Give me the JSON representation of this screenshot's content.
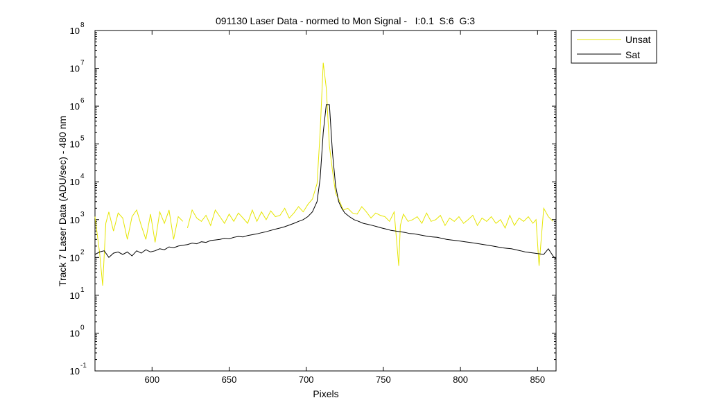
{
  "chart_data": {
    "type": "line",
    "title": "091130 Laser Data - normed to Mon Signal -   I:0.1  S:6  G:3",
    "xlabel": "Pixels",
    "ylabel": "Track 7 Laser Data (ADU/sec) - 480 nm",
    "xlim": [
      563,
      862
    ],
    "ylim": [
      0.1,
      100000000
    ],
    "yscale": "log",
    "x_ticks": [
      600,
      650,
      700,
      750,
      800,
      850
    ],
    "y_tick_exponents": [
      -1,
      0,
      1,
      2,
      3,
      4,
      5,
      6,
      7,
      8
    ],
    "y_tick_base": "10",
    "grid": false,
    "legend_position": "outside-top-right",
    "series": [
      {
        "name": "Unsat",
        "color": "#e6e600",
        "gap_x": 623,
        "x": [
          563,
          566,
          568,
          570,
          572,
          575,
          578,
          581,
          584,
          587,
          590,
          593,
          596,
          599,
          602,
          605,
          608,
          611,
          614,
          617,
          620,
          623,
          626,
          629,
          632,
          635,
          638,
          641,
          644,
          647,
          650,
          653,
          656,
          659,
          662,
          665,
          668,
          671,
          674,
          677,
          680,
          683,
          686,
          689,
          692,
          695,
          698,
          701,
          704,
          707,
          709,
          711,
          713,
          715,
          717,
          719,
          721,
          724,
          727,
          730,
          733,
          736,
          739,
          742,
          745,
          748,
          751,
          754,
          757,
          760,
          761,
          763,
          766,
          769,
          772,
          775,
          778,
          781,
          784,
          787,
          790,
          793,
          796,
          799,
          802,
          805,
          808,
          811,
          814,
          817,
          820,
          823,
          826,
          829,
          832,
          835,
          838,
          841,
          844,
          847,
          849,
          851,
          854,
          857,
          860
        ],
        "y": [
          1200,
          130,
          18,
          800,
          1600,
          500,
          1500,
          1100,
          300,
          1200,
          1800,
          700,
          300,
          1400,
          250,
          1600,
          800,
          1800,
          300,
          1200,
          900,
          600,
          1800,
          1100,
          900,
          1300,
          700,
          1800,
          1200,
          800,
          1400,
          900,
          1500,
          1100,
          800,
          1800,
          900,
          1600,
          1000,
          1700,
          1200,
          1300,
          2000,
          1100,
          1500,
          2200,
          1600,
          2500,
          3500,
          9000,
          200000,
          14000000,
          3000000,
          90000,
          20000,
          5000,
          3500,
          1800,
          2000,
          1500,
          1400,
          2200,
          1600,
          1100,
          1500,
          1300,
          1200,
          900,
          1600,
          60,
          700,
          1400,
          900,
          1000,
          1200,
          800,
          1500,
          900,
          1000,
          1300,
          700,
          1100,
          900,
          1200,
          800,
          1000,
          1300,
          700,
          1100,
          900,
          1200,
          800,
          1000,
          600,
          1300,
          700,
          1100,
          900,
          1200,
          800,
          1000,
          60,
          2000,
          1200,
          900
        ],
        "y_comment": "line breaks between x=620 and x=623"
      },
      {
        "name": "Sat",
        "color": "#000000",
        "x": [
          563,
          566,
          569,
          572,
          575,
          578,
          581,
          584,
          587,
          590,
          593,
          596,
          599,
          602,
          605,
          608,
          611,
          614,
          617,
          620,
          623,
          626,
          629,
          632,
          635,
          638,
          641,
          644,
          647,
          650,
          653,
          656,
          659,
          662,
          665,
          668,
          671,
          674,
          677,
          680,
          683,
          686,
          689,
          692,
          695,
          698,
          701,
          704,
          707,
          709,
          711,
          713,
          715,
          717,
          719,
          721,
          723,
          725,
          728,
          731,
          734,
          737,
          740,
          743,
          746,
          749,
          752,
          755,
          758,
          761,
          764,
          767,
          770,
          773,
          776,
          779,
          782,
          785,
          788,
          791,
          794,
          797,
          800,
          803,
          806,
          809,
          812,
          815,
          818,
          821,
          824,
          827,
          830,
          833,
          836,
          839,
          842,
          845,
          848,
          851,
          854,
          857,
          860,
          862
        ],
        "y": [
          120,
          140,
          150,
          100,
          130,
          140,
          120,
          140,
          110,
          150,
          130,
          160,
          140,
          150,
          170,
          160,
          190,
          180,
          200,
          210,
          220,
          240,
          230,
          260,
          250,
          280,
          290,
          300,
          320,
          310,
          340,
          360,
          350,
          380,
          400,
          420,
          450,
          480,
          520,
          560,
          600,
          650,
          720,
          800,
          900,
          1000,
          1200,
          1600,
          3000,
          12000,
          200000,
          1100000,
          1100000,
          60000,
          8000,
          3000,
          2000,
          1500,
          1200,
          1000,
          900,
          800,
          750,
          700,
          650,
          600,
          560,
          520,
          500,
          480,
          460,
          430,
          420,
          400,
          380,
          360,
          350,
          340,
          320,
          300,
          290,
          280,
          270,
          260,
          250,
          240,
          230,
          220,
          210,
          200,
          190,
          180,
          175,
          170,
          160,
          150,
          140,
          135,
          130,
          125,
          120,
          170,
          110,
          90
        ]
      }
    ]
  }
}
